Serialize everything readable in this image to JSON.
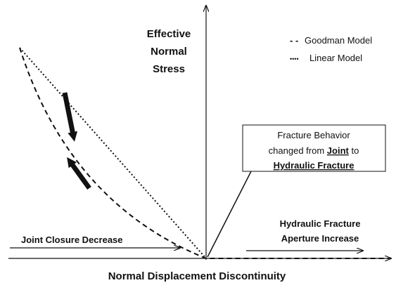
{
  "y_axis_label": [
    "Effective",
    "Normal",
    "Stress"
  ],
  "x_axis_label": "Normal Displacement Discontinuity",
  "legend": [
    {
      "symbol": "- -",
      "label": "Goodman Model"
    },
    {
      "symbol": "••••",
      "label": "Linear Model"
    }
  ],
  "callout": {
    "line1": "Fracture Behavior",
    "line2": [
      "changed from ",
      "Joint",
      " to"
    ],
    "line3": "Hydraulic Fracture"
  },
  "annotations": {
    "left": "Joint Closure Decrease",
    "right": [
      "Hydraulic Fracture",
      "Aperture Increase"
    ]
  }
}
